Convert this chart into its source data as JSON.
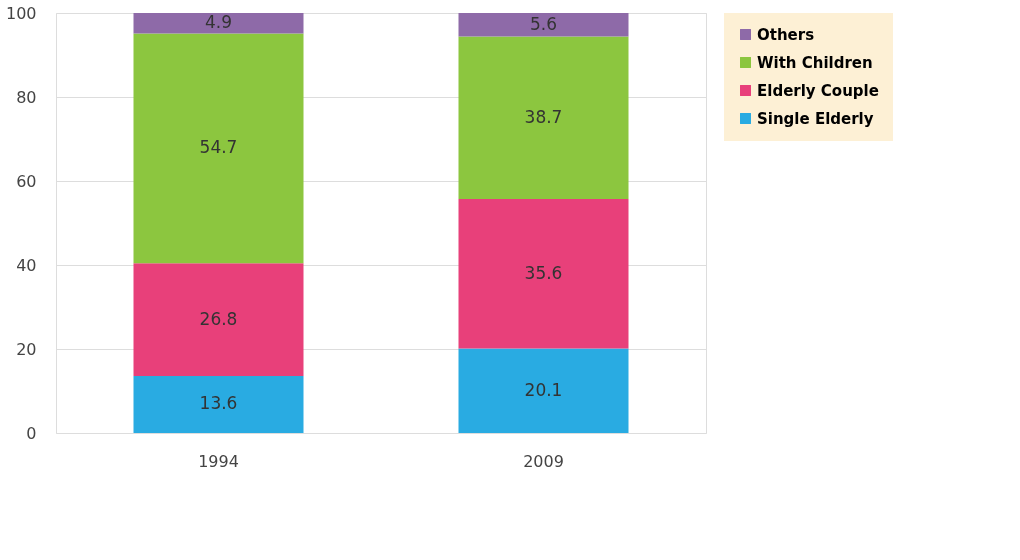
{
  "chart_data": {
    "type": "bar",
    "stacked": true,
    "categories": [
      "1994",
      "2009"
    ],
    "series": [
      {
        "name": "Single Elderly",
        "color": "#29abe2",
        "values": [
          13.6,
          20.1
        ]
      },
      {
        "name": "Elderly Couple",
        "color": "#e8407a",
        "values": [
          26.8,
          35.6
        ]
      },
      {
        "name": "With Children",
        "color": "#8cc63f",
        "values": [
          54.7,
          38.7
        ]
      },
      {
        "name": "Others",
        "color": "#8e6aa8",
        "values": [
          4.9,
          5.6
        ]
      }
    ],
    "ylim": [
      0,
      100
    ],
    "yticks": [
      0,
      20,
      40,
      60,
      80,
      100
    ],
    "grid": "y",
    "legend": "right",
    "data_labels": true
  }
}
